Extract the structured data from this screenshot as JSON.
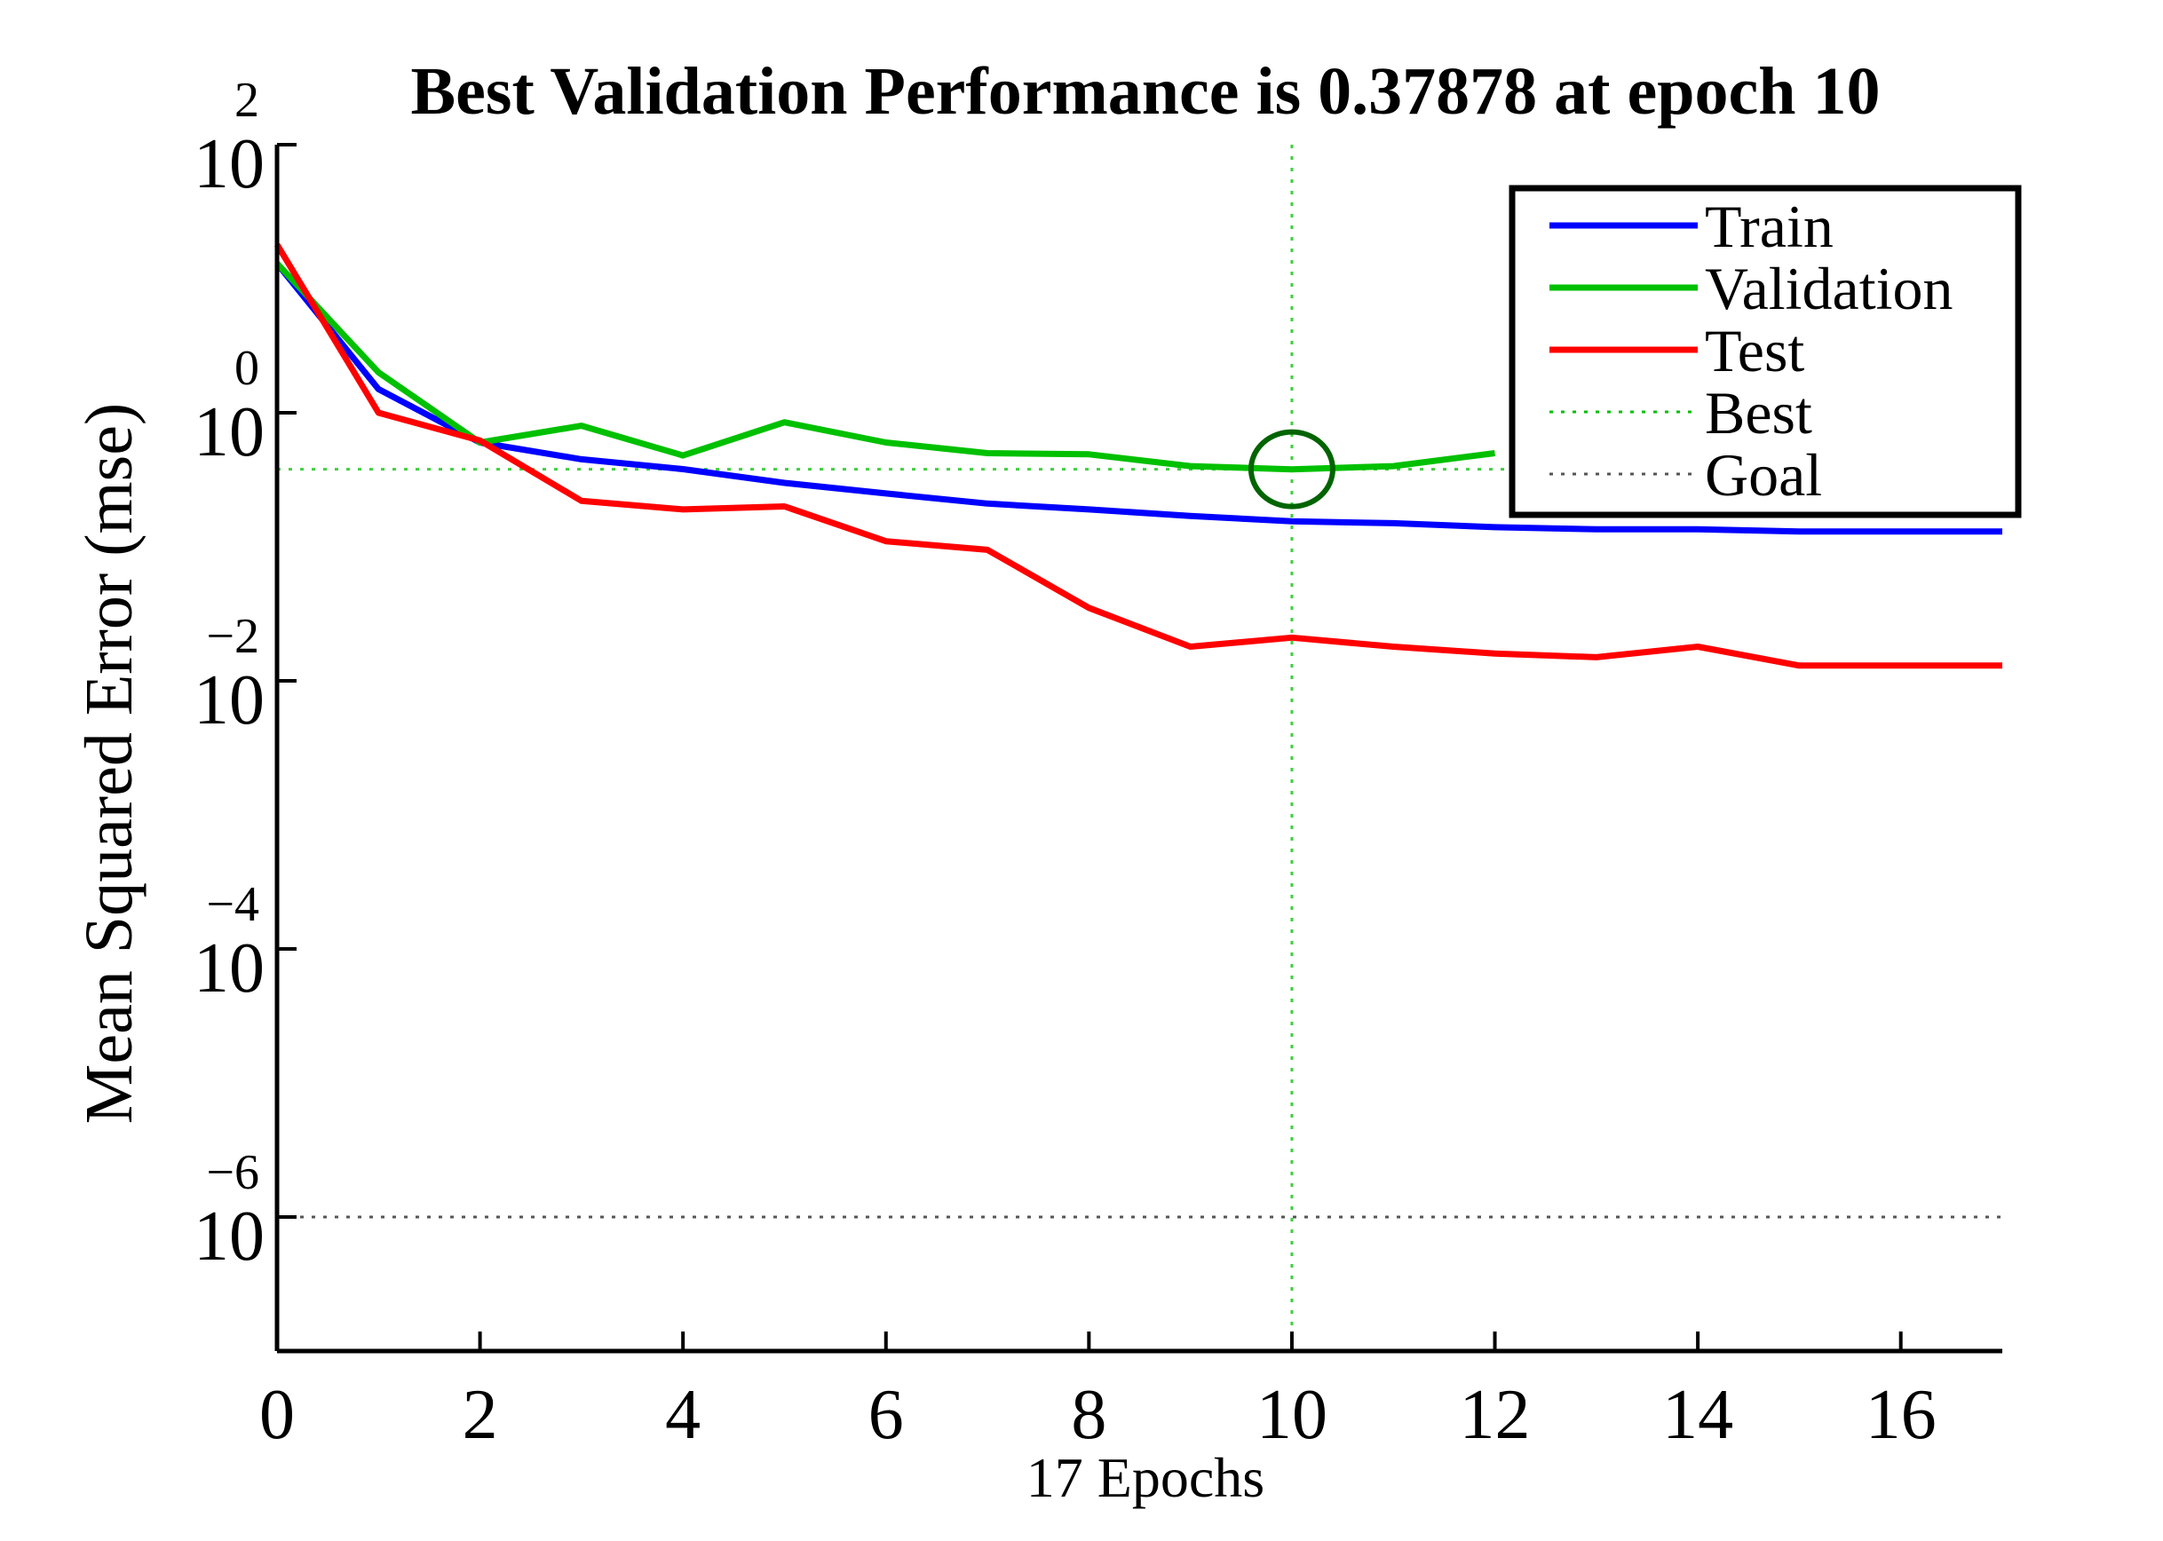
{
  "chart_data": {
    "type": "line",
    "title": "Best Validation Performance is 0.37878 at epoch 10",
    "xlabel": "17 Epochs",
    "ylabel": "Mean Squared Error  (mse)",
    "x": [
      0,
      1,
      2,
      3,
      4,
      5,
      6,
      7,
      8,
      9,
      10,
      11,
      12,
      13,
      14,
      15,
      16,
      17
    ],
    "xlim": [
      0,
      17
    ],
    "xticks": [
      0,
      2,
      4,
      6,
      8,
      10,
      12,
      14,
      16
    ],
    "y_scale": "log",
    "ylim": [
      1e-07,
      100
    ],
    "yticks": [
      {
        "value": 100,
        "base": "10",
        "exp": "2"
      },
      {
        "value": 1,
        "base": "10",
        "exp": "0"
      },
      {
        "value": 0.01,
        "base": "10",
        "exp": "−2"
      },
      {
        "value": 0.0001,
        "base": "10",
        "exp": "−4"
      },
      {
        "value": 1e-06,
        "base": "10",
        "exp": "−6"
      }
    ],
    "series": [
      {
        "name": "Train",
        "color": "#0000ff",
        "style": "solid",
        "values": [
          13,
          1.5,
          0.6,
          0.45,
          0.38,
          0.3,
          0.25,
          0.21,
          0.19,
          0.17,
          0.155,
          0.15,
          0.14,
          0.135,
          0.135,
          0.13,
          0.13,
          0.13
        ]
      },
      {
        "name": "Validation",
        "color": "#00c000",
        "style": "solid",
        "values": [
          13,
          2,
          0.6,
          0.8,
          0.48,
          0.85,
          0.6,
          0.5,
          0.49,
          0.4,
          0.37878,
          0.4,
          0.5,
          null,
          null,
          null,
          null,
          null
        ]
      },
      {
        "name": "Test",
        "color": "#ff0000",
        "style": "solid",
        "values": [
          18,
          1.0,
          0.62,
          0.22,
          0.19,
          0.2,
          0.11,
          0.095,
          0.035,
          0.018,
          0.021,
          0.018,
          0.016,
          0.015,
          0.018,
          0.013,
          0.013,
          0.013
        ]
      }
    ],
    "best": {
      "name": "Best",
      "epoch": 10,
      "value": 0.37878,
      "color": "#00c000",
      "style": "dotted"
    },
    "goal": {
      "name": "Goal",
      "value": 1e-06,
      "color": "#555555",
      "style": "dotted"
    },
    "grid": false,
    "legend": "top-right"
  }
}
